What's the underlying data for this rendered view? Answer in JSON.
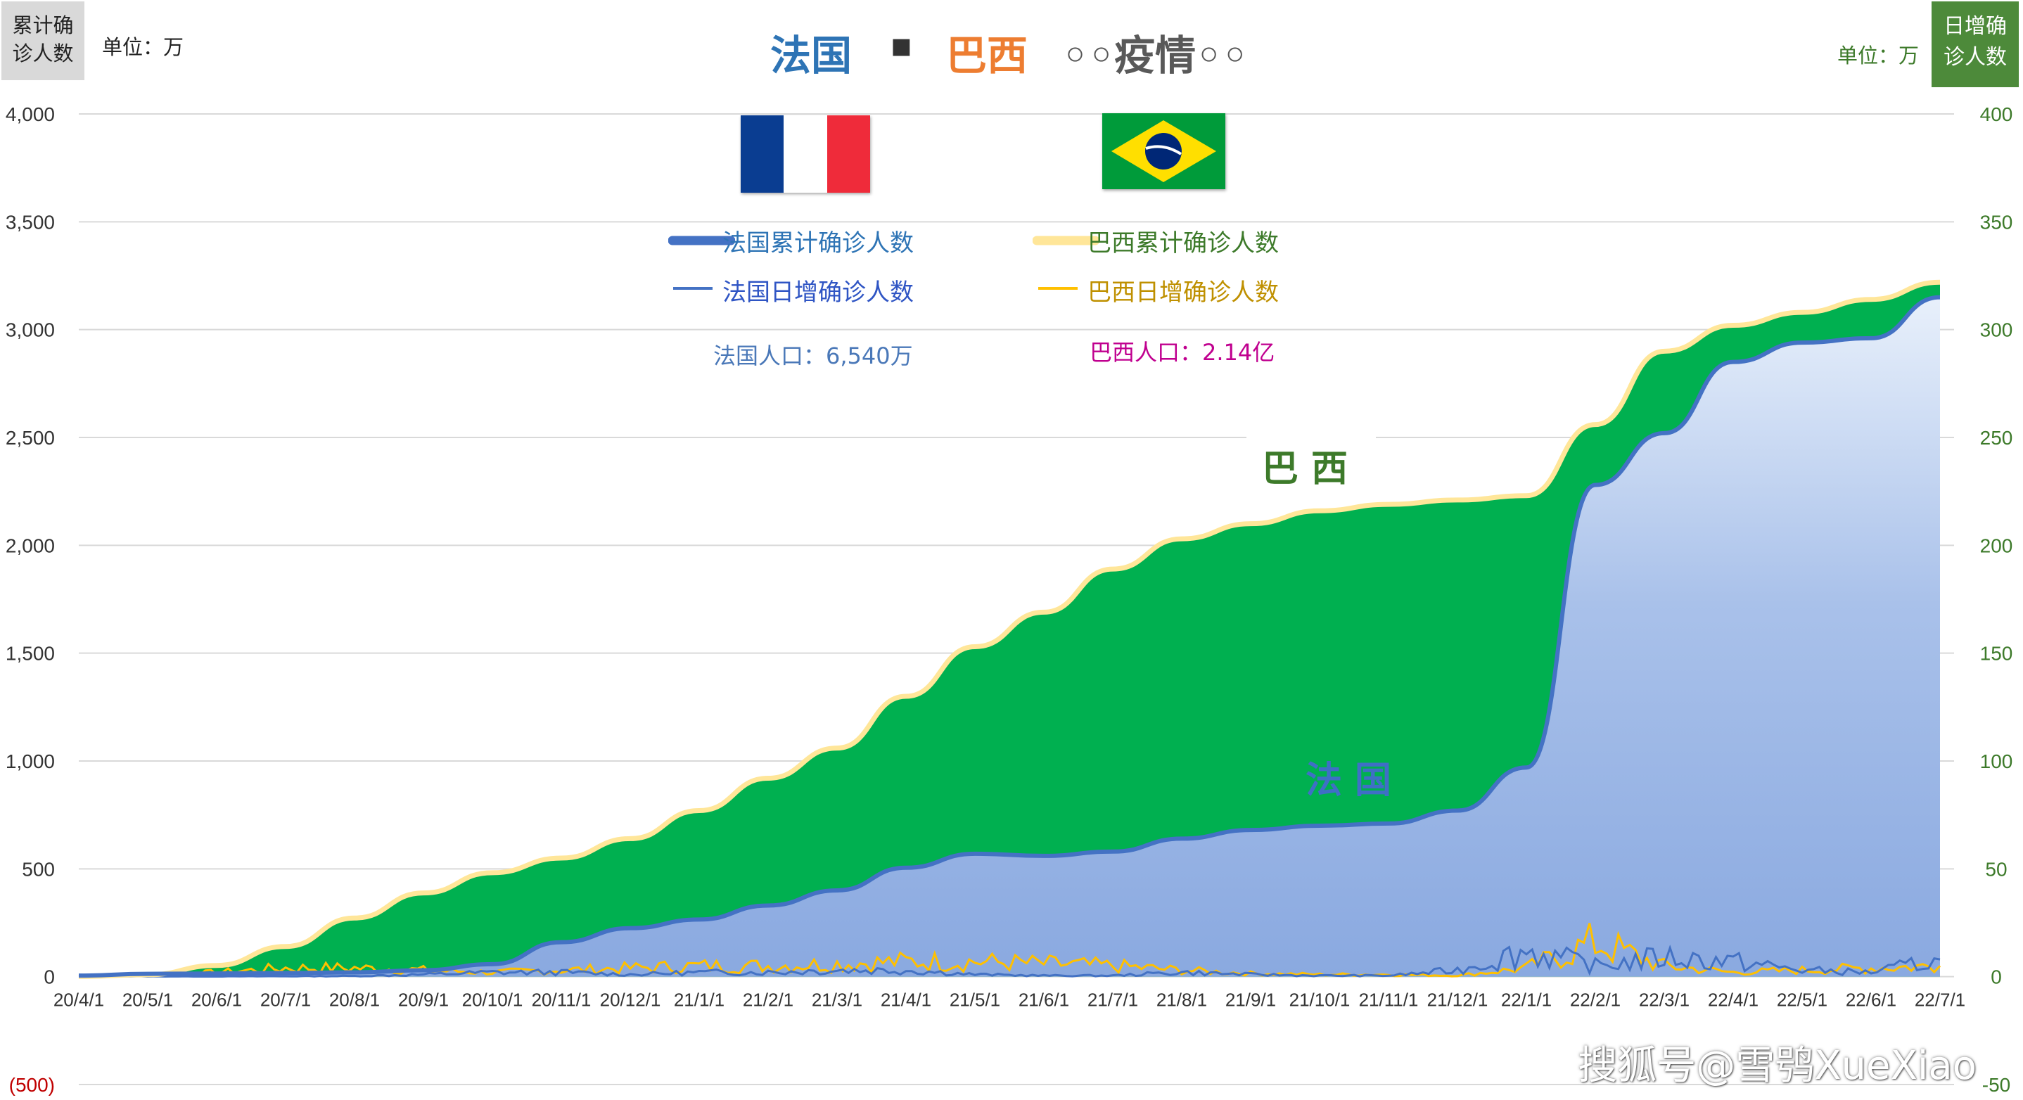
{
  "title": {
    "france": "法国",
    "dot": "▪",
    "brazil": "巴西",
    "epidemic": "◦◦疫情◦◦"
  },
  "left_axis": {
    "box_line1": "累计确",
    "box_line2": "诊人数",
    "unit": "单位：万"
  },
  "right_axis": {
    "box_line1": "日增确",
    "box_line2": "诊人数",
    "unit": "单位：万"
  },
  "legend": [
    {
      "label": "法国累计确诊人数",
      "color": "#4472c4"
    },
    {
      "label": "巴西累计确诊人数",
      "color": "#ffe699"
    },
    {
      "label": "法国日增确诊人数",
      "color": "#4472c4"
    },
    {
      "label": "巴西日增确诊人数",
      "color": "#ffc000"
    }
  ],
  "population": {
    "france": "法国人口：6,540万",
    "brazil": "巴西人口：2.14亿"
  },
  "area_labels": {
    "brazil": "巴西",
    "france": "法国"
  },
  "watermark": "搜狐号@雪鸮XueXiao",
  "colors": {
    "france": "#4472c4",
    "brazil_cum": "#ffe699",
    "brazil_daily": "#ffc000",
    "brazil_fill": "#00b050"
  },
  "chart_data": {
    "type": "line",
    "title": "法国 ▪ 巴西 ◦◦疫情◦◦",
    "x_labels": [
      "20/4/1",
      "20/5/1",
      "20/6/1",
      "20/7/1",
      "20/8/1",
      "20/9/1",
      "20/10/1",
      "20/11/1",
      "20/12/1",
      "21/1/1",
      "21/2/1",
      "21/3/1",
      "21/4/1",
      "21/5/1",
      "21/6/1",
      "21/7/1",
      "21/8/1",
      "21/9/1",
      "21/10/1",
      "21/11/1",
      "21/12/1",
      "22/1/1",
      "22/2/1",
      "22/3/1",
      "22/4/1",
      "22/5/1",
      "22/6/1",
      "22/7/1"
    ],
    "y_left": {
      "label": "累计确诊人数 (万)",
      "min": -500,
      "max": 4000,
      "ticks": [
        -500,
        0,
        500,
        1000,
        1500,
        2000,
        2500,
        3000,
        3500,
        4000
      ],
      "tick_labels": [
        "(500)",
        "0",
        "500",
        "1,000",
        "1,500",
        "2,000",
        "2,500",
        "3,000",
        "3,500",
        "4,000"
      ]
    },
    "y_right": {
      "label": "日增确诊人数 (万)",
      "min": -50,
      "max": 400,
      "ticks": [
        -50,
        0,
        50,
        100,
        150,
        200,
        250,
        300,
        350,
        400
      ],
      "tick_labels": [
        "-50",
        "0",
        "50",
        "100",
        "150",
        "200",
        "250",
        "300",
        "350",
        "400"
      ]
    },
    "series": [
      {
        "name": "法国累计确诊人数",
        "axis": "left",
        "values": [
          5,
          13,
          15,
          17,
          20,
          30,
          58,
          160,
          225,
          265,
          330,
          400,
          505,
          570,
          560,
          580,
          640,
          680,
          700,
          710,
          770,
          970,
          2280,
          2520,
          2850,
          2940,
          2960,
          3150
        ]
      },
      {
        "name": "巴西累计确诊人数",
        "axis": "left",
        "values": [
          1,
          9,
          52,
          140,
          272,
          388,
          482,
          550,
          640,
          770,
          920,
          1060,
          1300,
          1530,
          1690,
          1890,
          2030,
          2100,
          2160,
          2190,
          2210,
          2230,
          2560,
          2900,
          3020,
          3080,
          3140,
          3220
        ]
      },
      {
        "name": "法国日增确诊人数",
        "axis": "right",
        "values": [
          0.5,
          0.1,
          0.1,
          0.2,
          0.3,
          1,
          2,
          2,
          1,
          2,
          2,
          3,
          3,
          1,
          0.5,
          0.5,
          2,
          1,
          0.5,
          0.5,
          3,
          12,
          5,
          9,
          7,
          3,
          2,
          8
        ]
      },
      {
        "name": "巴西日增确诊人数",
        "axis": "right",
        "values": [
          0.3,
          0.8,
          2,
          4,
          4,
          3,
          2,
          3,
          4,
          5,
          5,
          6,
          7,
          7,
          6,
          5,
          3,
          1.5,
          1,
          1,
          0.5,
          4,
          16,
          5,
          2,
          3,
          4,
          5
        ]
      }
    ],
    "annotations": [
      "巴西",
      "法国"
    ]
  }
}
